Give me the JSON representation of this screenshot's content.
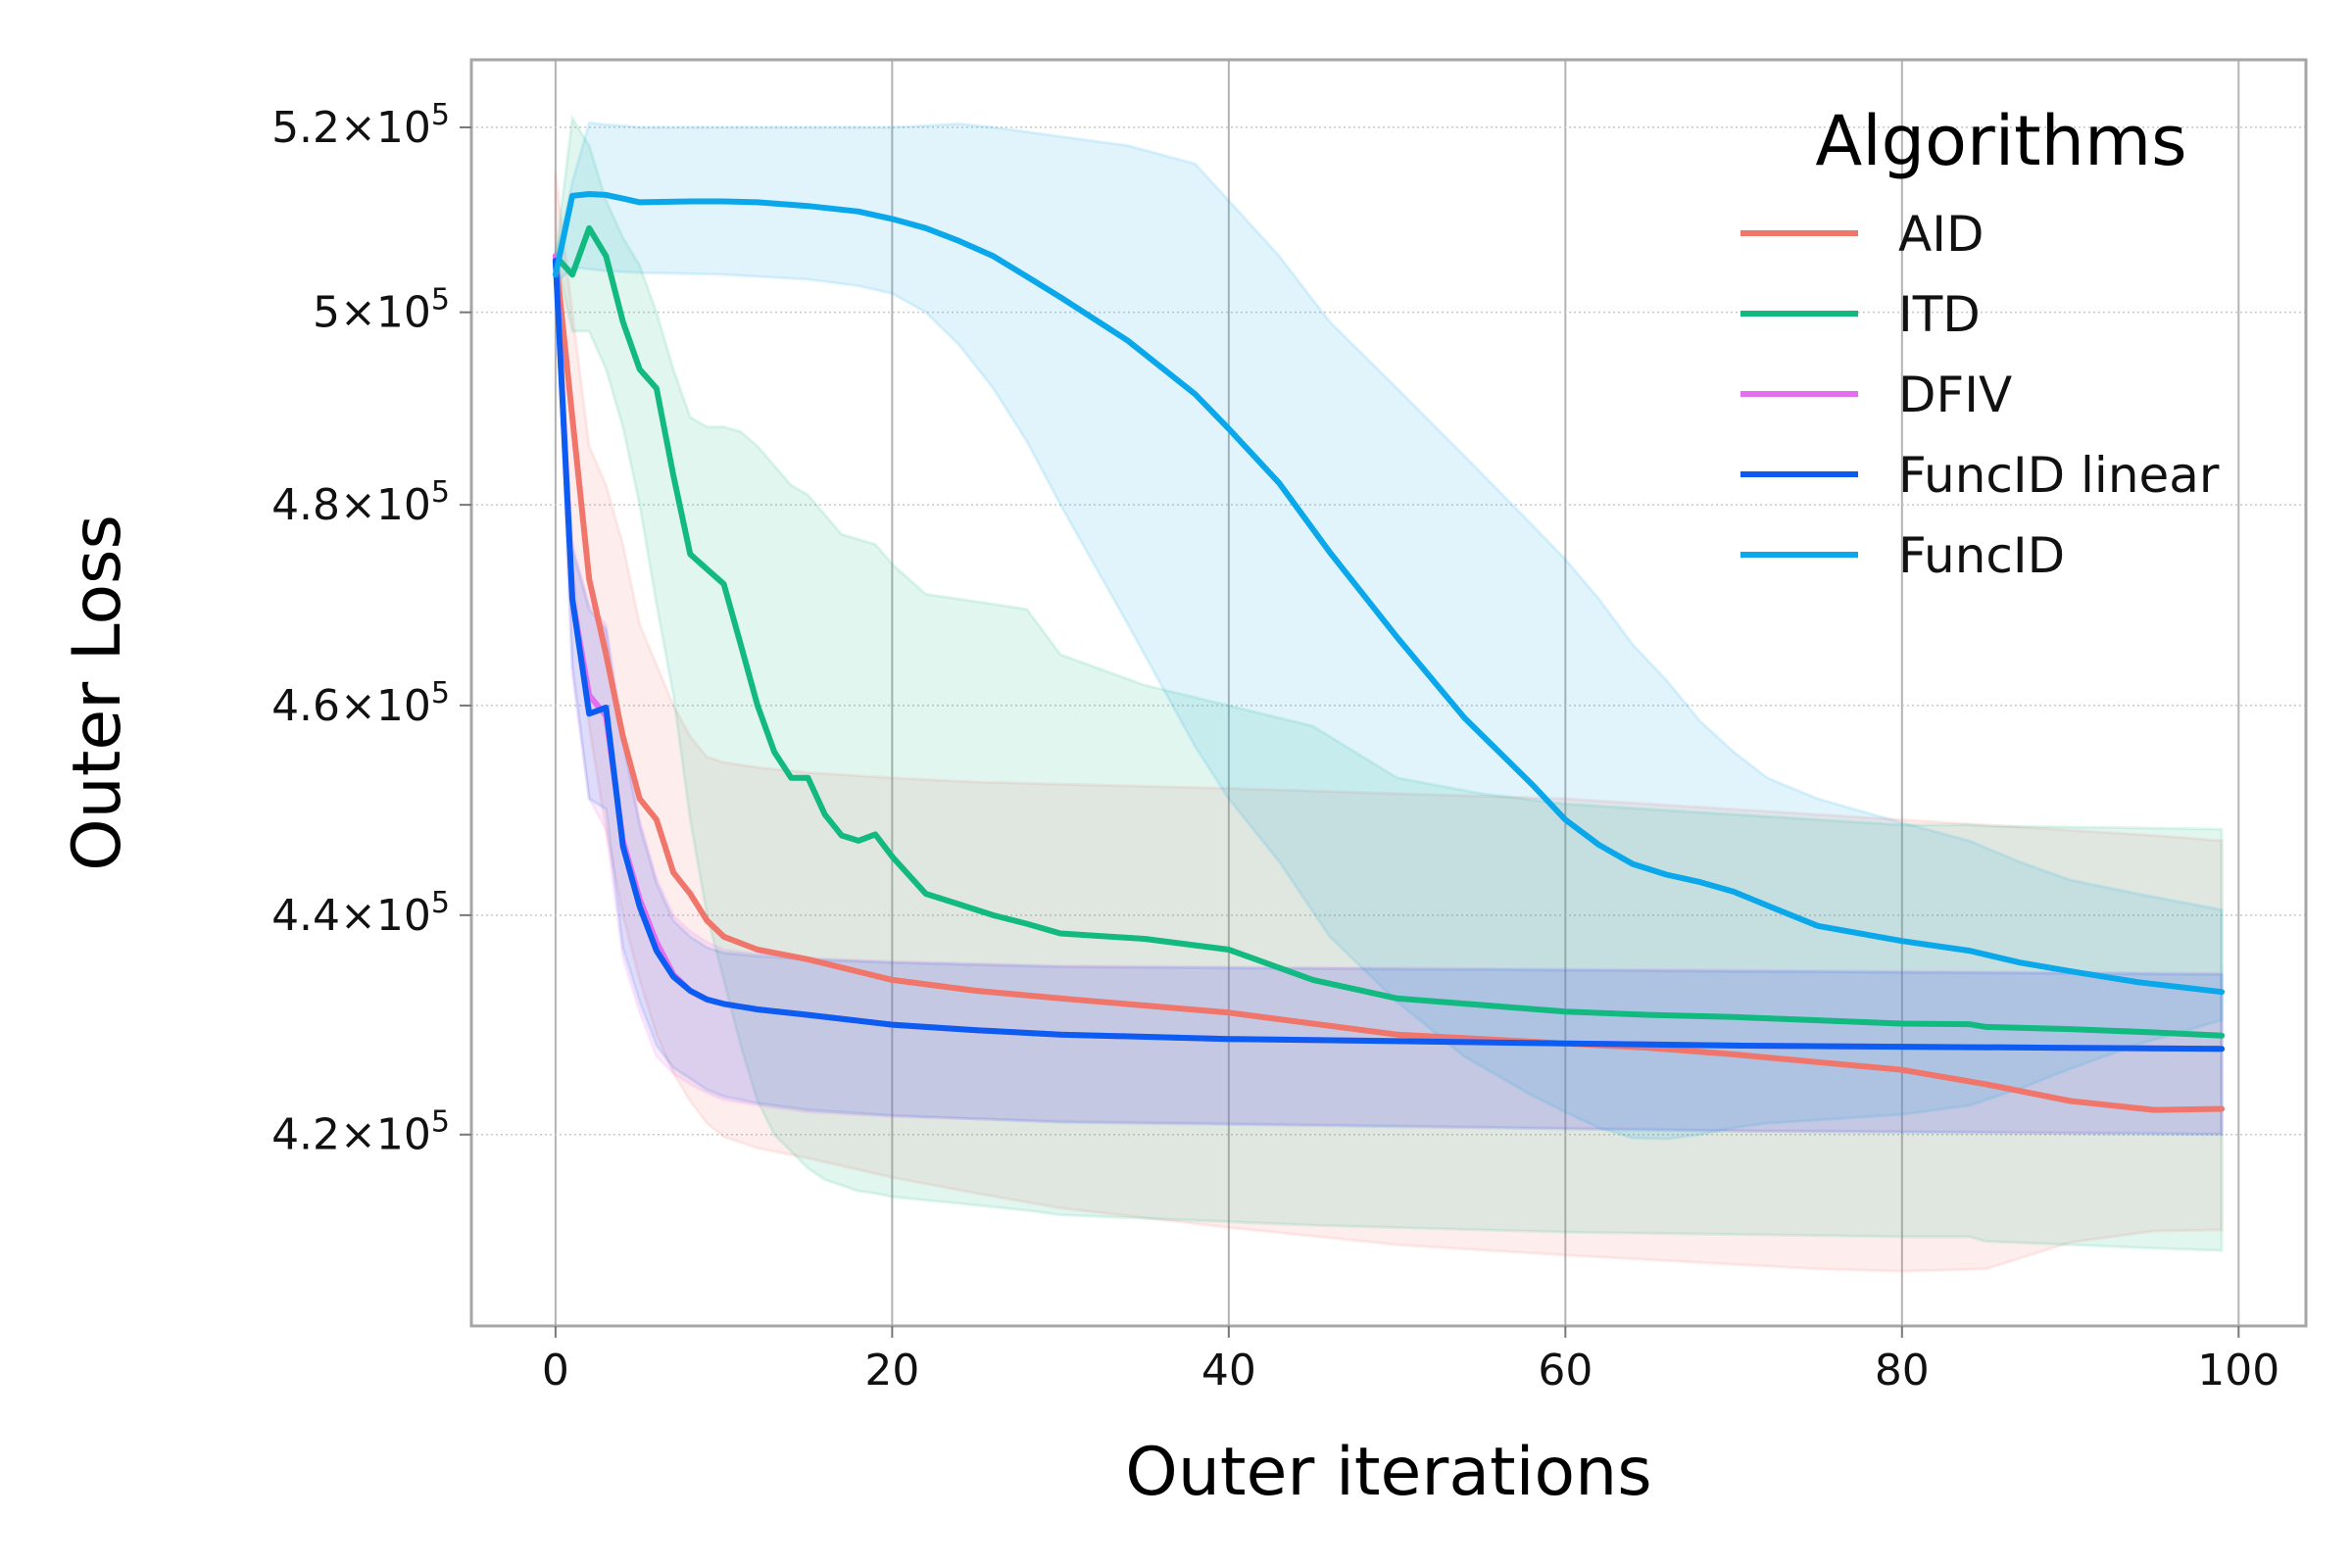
{
  "chart_data": {
    "type": "line",
    "title": "",
    "xlabel": "Outer iterations",
    "ylabel": "Outer Loss",
    "xlim": [
      -5,
      104
    ],
    "ylim": [
      403300,
      527500
    ],
    "y_scale": "log",
    "grid": true,
    "legend_position": "top-right",
    "legend_title": "Algorithms",
    "x_ticks": [
      {
        "value": 0,
        "label": "0"
      },
      {
        "value": 20,
        "label": "20"
      },
      {
        "value": 40,
        "label": "40"
      },
      {
        "value": 60,
        "label": "60"
      },
      {
        "value": 80,
        "label": "80"
      },
      {
        "value": 100,
        "label": "100"
      }
    ],
    "y_ticks": [
      {
        "value": 420000,
        "mantissa": "4.2",
        "exponent": "5"
      },
      {
        "value": 440000,
        "mantissa": "4.4",
        "exponent": "5"
      },
      {
        "value": 460000,
        "mantissa": "4.6",
        "exponent": "5"
      },
      {
        "value": 480000,
        "mantissa": "4.8",
        "exponent": "5"
      },
      {
        "value": 500000,
        "mantissa": "5",
        "exponent": "5"
      },
      {
        "value": 520000,
        "mantissa": "5.2",
        "exponent": "5"
      }
    ],
    "series": [
      {
        "name": "AID",
        "color": "#f0756a",
        "x": [
          0,
          1,
          2,
          3,
          4,
          5,
          6,
          7,
          8,
          9,
          10,
          12,
          15,
          20,
          25,
          30,
          40,
          50,
          60,
          65,
          70,
          75,
          80,
          85,
          90,
          95,
          99
        ],
        "mean": [
          506000,
          489000,
          472500,
          465000,
          457000,
          451000,
          449000,
          444000,
          442000,
          439500,
          438000,
          436800,
          435900,
          434000,
          433000,
          432300,
          431000,
          429000,
          428200,
          427800,
          427200,
          426500,
          425800,
          424500,
          423000,
          422200,
          422300
        ],
        "upper": [
          515000,
          500000,
          486000,
          482000,
          476000,
          468000,
          464000,
          460000,
          457000,
          455000,
          454500,
          454000,
          453500,
          453000,
          452600,
          452400,
          452000,
          451500,
          451000,
          450500,
          450000,
          449500,
          449000,
          448500,
          448000,
          447500,
          447000
        ],
        "lower": [
          503000,
          474000,
          458000,
          448000,
          440000,
          434000,
          429000,
          425500,
          423000,
          421000,
          419800,
          418800,
          417900,
          416200,
          414800,
          413500,
          411800,
          410300,
          409400,
          409000,
          408600,
          408200,
          408000,
          408200,
          410500,
          411500,
          411600
        ]
      },
      {
        "name": "ITD",
        "color": "#12b981",
        "x": [
          0,
          1,
          2,
          3,
          4,
          5,
          6,
          7,
          8,
          9,
          10,
          11,
          12,
          13,
          14,
          15,
          16,
          17,
          18,
          19,
          20,
          22,
          24,
          26,
          28,
          30,
          35,
          40,
          45,
          50,
          55,
          60,
          65,
          70,
          75,
          80,
          84,
          85,
          90,
          95,
          99
        ],
        "mean": [
          506000,
          504000,
          509000,
          506000,
          499000,
          494000,
          492000,
          483000,
          475000,
          473500,
          472000,
          466000,
          460000,
          455500,
          453000,
          453000,
          449500,
          447500,
          447000,
          447600,
          445500,
          442000,
          441000,
          440000,
          439200,
          438300,
          437800,
          436800,
          434000,
          432300,
          431700,
          431100,
          430800,
          430600,
          430300,
          430000,
          429950,
          429700,
          429500,
          429200,
          428900
        ],
        "upper": [
          506000,
          521000,
          518000,
          512000,
          508000,
          505000,
          500000,
          494000,
          489000,
          488000,
          488000,
          487500,
          486000,
          484000,
          482000,
          481000,
          479000,
          477000,
          476500,
          476000,
          474000,
          471000,
          470500,
          470000,
          469500,
          465000,
          462000,
          460000,
          458000,
          453000,
          451500,
          450500,
          450000,
          449500,
          449000,
          448500,
          448500,
          448400,
          448300,
          448200,
          448100
        ],
        "lower": [
          506000,
          498000,
          498000,
          494000,
          488000,
          480000,
          470000,
          461000,
          449000,
          440000,
          434000,
          428000,
          423000,
          420000,
          418500,
          417000,
          416000,
          415500,
          415000,
          414800,
          414500,
          414200,
          413900,
          413600,
          413300,
          412900,
          412600,
          412300,
          412000,
          411800,
          411600,
          411400,
          411300,
          411200,
          411100,
          411000,
          411000,
          410600,
          410300,
          410000,
          409800
        ]
      },
      {
        "name": "DFIV",
        "color": "#e56ef0",
        "x": [
          0,
          1,
          2,
          3,
          4,
          5,
          6,
          7,
          8,
          9,
          10,
          12,
          15,
          20,
          25,
          30,
          40,
          50,
          60,
          70,
          80,
          90,
          99
        ],
        "mean": [
          506000,
          470500,
          461000,
          459000,
          447000,
          441500,
          437500,
          434500,
          433000,
          432200,
          431800,
          431300,
          430800,
          429900,
          429400,
          429000,
          428600,
          428400,
          428200,
          428000,
          427900,
          427800,
          427700
        ],
        "upper": [
          506000,
          476000,
          470000,
          468000,
          457000,
          449000,
          443500,
          440000,
          438500,
          437500,
          436800,
          436400,
          436000,
          435700,
          435500,
          435300,
          435200,
          435100,
          435000,
          434900,
          434800,
          434700,
          434600
        ],
        "lower": [
          506000,
          463000,
          451000,
          448000,
          436000,
          431000,
          427000,
          425500,
          424500,
          423700,
          423100,
          422600,
          422000,
          421600,
          421400,
          421200,
          421000,
          420800,
          420600,
          420400,
          420300,
          420200,
          420100
        ]
      },
      {
        "name": "FuncID linear",
        "color": "#0c5cf2",
        "x": [
          0,
          1,
          2,
          3,
          4,
          5,
          6,
          7,
          8,
          9,
          10,
          12,
          15,
          20,
          25,
          30,
          40,
          50,
          60,
          70,
          80,
          90,
          99
        ],
        "mean": [
          505500,
          470500,
          459200,
          459800,
          446500,
          440800,
          436700,
          434300,
          433000,
          432200,
          431800,
          431300,
          430800,
          429900,
          429400,
          429000,
          428600,
          428400,
          428200,
          428000,
          427900,
          427800,
          427700
        ],
        "upper": [
          506000,
          475500,
          469500,
          467500,
          456500,
          448500,
          443000,
          439500,
          438000,
          437000,
          436500,
          436200,
          435900,
          435600,
          435400,
          435200,
          435100,
          435000,
          434900,
          434800,
          434700,
          434600,
          434500
        ],
        "lower": [
          505000,
          464000,
          451000,
          450000,
          437000,
          432000,
          428000,
          426000,
          425000,
          424000,
          423400,
          422800,
          422200,
          421700,
          421400,
          421100,
          420900,
          420700,
          420500,
          420300,
          420200,
          420100,
          420000
        ]
      },
      {
        "name": "FuncID",
        "color": "#0aa8ea",
        "x": [
          0,
          1,
          2,
          3,
          4,
          5,
          8,
          10,
          12,
          15,
          18,
          20,
          22,
          24,
          26,
          28,
          30,
          34,
          38,
          40,
          43,
          46,
          50,
          54,
          58,
          60,
          62,
          64,
          66,
          68,
          70,
          72,
          75,
          80,
          84,
          87,
          90,
          94,
          99
        ],
        "mean": [
          504000,
          512500,
          512700,
          512600,
          512200,
          511800,
          511900,
          511900,
          511800,
          511400,
          510800,
          510000,
          509000,
          507600,
          506000,
          503800,
          501600,
          497000,
          491400,
          487800,
          482200,
          475200,
          466700,
          458800,
          452400,
          449000,
          446600,
          444800,
          443800,
          443100,
          442200,
          440900,
          439000,
          437600,
          436700,
          435600,
          434800,
          433800,
          432900
        ],
        "upper": [
          506000,
          514000,
          520500,
          520300,
          520200,
          520000,
          520000,
          520000,
          520000,
          520000,
          520000,
          520000,
          520200,
          520400,
          520000,
          519500,
          519000,
          518000,
          516000,
          512000,
          506000,
          499000,
          492000,
          485000,
          478000,
          474500,
          470500,
          466000,
          462500,
          458500,
          455500,
          453000,
          451000,
          448700,
          447000,
          445000,
          443300,
          442000,
          440500
        ],
        "lower": [
          503000,
          504800,
          504600,
          504400,
          504300,
          504200,
          504100,
          504000,
          503800,
          503500,
          502800,
          502000,
          500000,
          496500,
          492000,
          486500,
          480000,
          468000,
          456000,
          451000,
          445000,
          438000,
          432000,
          427000,
          423500,
          422000,
          420600,
          419700,
          419600,
          420000,
          420600,
          421000,
          421300,
          421800,
          422600,
          424100,
          425900,
          428100,
          430300
        ]
      }
    ]
  }
}
